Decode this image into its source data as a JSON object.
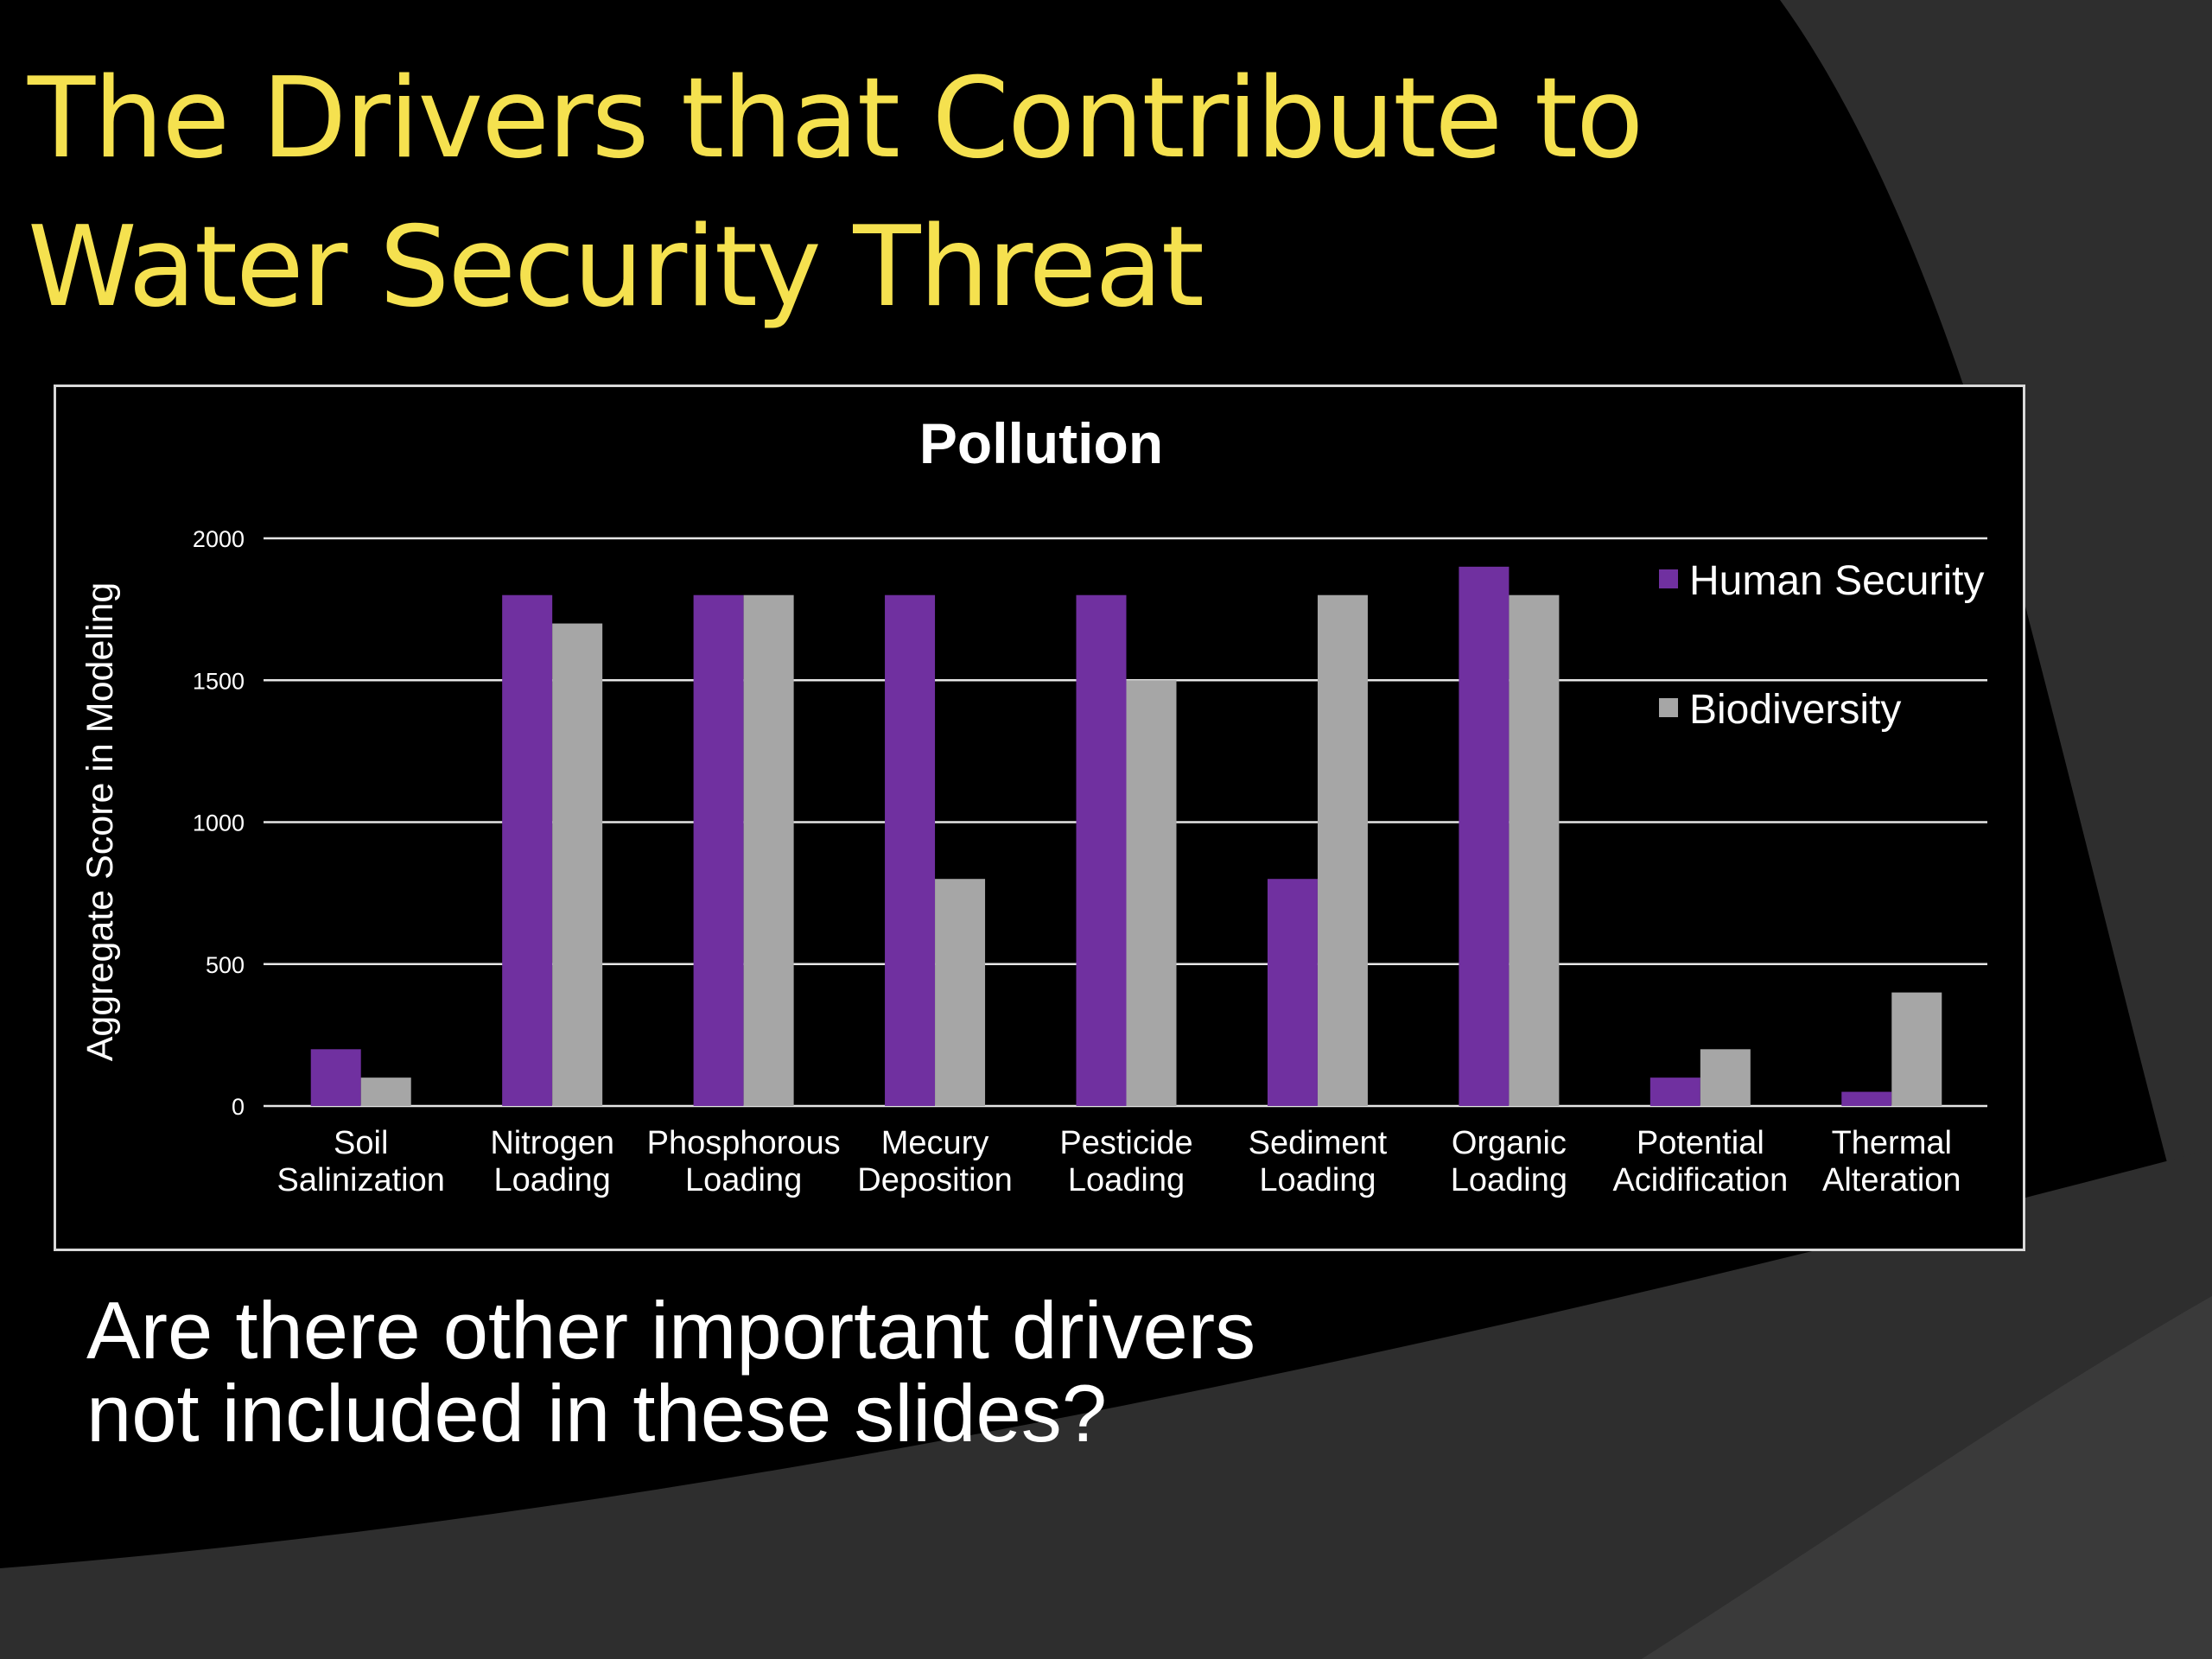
{
  "slide": {
    "title_lines": [
      "The Drivers that Contribute to",
      "Water Security Threat"
    ],
    "question_lines": [
      "Are there other important drivers",
      "not included in these slides?"
    ]
  },
  "colors": {
    "title": "#f5e14f",
    "human_security": "#7030a0",
    "biodiversity": "#a6a6a6"
  },
  "chart_data": {
    "type": "bar",
    "title": "Pollution",
    "ylabel": "Aggregate Score in Modeling",
    "xlabel": "",
    "ylim": [
      0,
      2000
    ],
    "yticks": [
      0,
      500,
      1000,
      1500,
      2000
    ],
    "grid": true,
    "legend": "right",
    "categories": [
      [
        "Soil",
        "Salinization"
      ],
      [
        "Nitrogen",
        "Loading"
      ],
      [
        "Phosphorous",
        "Loading"
      ],
      [
        "Mecury",
        "Deposition"
      ],
      [
        "Pesticide",
        "Loading"
      ],
      [
        "Sediment",
        "Loading"
      ],
      [
        "Organic",
        "Loading"
      ],
      [
        "Potential",
        "Acidification"
      ],
      [
        "Thermal",
        "Alteration"
      ]
    ],
    "series": [
      {
        "name": "Human Security",
        "color": "#7030a0",
        "values": [
          200,
          1800,
          1800,
          1800,
          1800,
          800,
          1900,
          100,
          50
        ]
      },
      {
        "name": "Biodiversity",
        "color": "#a6a6a6",
        "values": [
          100,
          1700,
          1800,
          800,
          1500,
          1800,
          1800,
          200,
          400
        ]
      }
    ]
  }
}
